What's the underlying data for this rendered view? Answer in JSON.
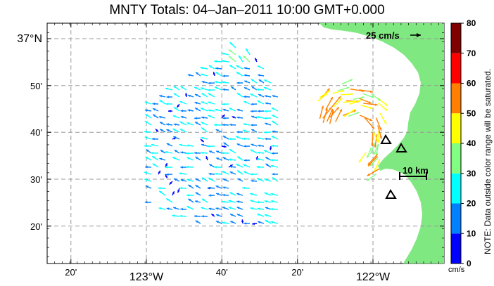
{
  "title": "MNTY Totals: 04–Jan–2011 10:00 GMT+0.000",
  "lon_ticks": [
    {
      "label": "20'",
      "deg": -123.333
    },
    {
      "label": "123°W",
      "deg": -123.0
    },
    {
      "label": "40'",
      "deg": -122.667
    },
    {
      "label": "20'",
      "deg": -122.333
    },
    {
      "label": "122°W",
      "deg": -122.0
    }
  ],
  "lat_ticks": [
    {
      "label": "37°N",
      "deg": 37.0
    },
    {
      "label": "50'",
      "deg": 36.833
    },
    {
      "label": "40'",
      "deg": 36.667
    },
    {
      "label": "30'",
      "deg": 36.5
    },
    {
      "label": "20'",
      "deg": 36.333
    }
  ],
  "scale_vector": {
    "label": "25 cm/s"
  },
  "scale_distance": {
    "label": "10 km"
  },
  "colorbar": {
    "ticks": [
      "0",
      "10",
      "20",
      "30",
      "40",
      "50",
      "60",
      "70",
      "80"
    ],
    "colors": [
      "#0000ff",
      "#0080ff",
      "#00ffff",
      "#80ff80",
      "#ffff00",
      "#ff8000",
      "#ff0000",
      "#800000"
    ],
    "unit": "cm/s",
    "note": "NOTE: Data outside color range will be saturated."
  },
  "land_color": "#80e880",
  "vector_field": {
    "unit": "cm/s",
    "speed_range": [
      0,
      80
    ],
    "regions": [
      {
        "id": "offshore-north",
        "description_speeds": [
          15,
          20,
          25,
          30,
          35
        ]
      },
      {
        "id": "bay-front",
        "description_speeds": [
          35,
          40,
          45,
          50,
          55,
          60
        ]
      }
    ]
  },
  "stations": [
    "station-1",
    "station-2",
    "station-3"
  ]
}
